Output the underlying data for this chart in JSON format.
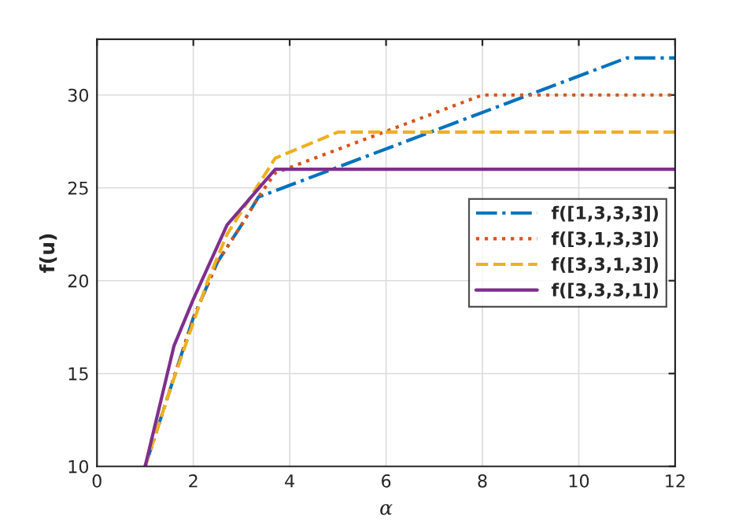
{
  "chart_data": {
    "type": "line",
    "xlabel": "α",
    "ylabel": "f(u)",
    "xlim": [
      0,
      12
    ],
    "ylim": [
      10,
      33
    ],
    "xticks": [
      0,
      2,
      4,
      6,
      8,
      10,
      12
    ],
    "yticks": [
      10,
      15,
      20,
      25,
      30
    ],
    "grid": true,
    "legend": "right",
    "series": [
      {
        "name": "f([1,3,3,3])",
        "color": "#0072bd",
        "line_style": "dashdot",
        "x": [
          1,
          1.5,
          2,
          2.5,
          3,
          3.35,
          11,
          12
        ],
        "values": [
          10,
          14,
          18,
          21,
          23,
          24.5,
          32,
          32
        ]
      },
      {
        "name": "f([3,1,3,3])",
        "color": "#d95319",
        "line_style": "dotted",
        "x": [
          1,
          1.5,
          2,
          2.5,
          3,
          3.35,
          3.7,
          8,
          12
        ],
        "values": [
          10,
          14,
          18,
          21,
          23,
          24.5,
          25.8,
          30,
          30
        ]
      },
      {
        "name": "f([3,3,1,3])",
        "color": "#edb120",
        "line_style": "dashed",
        "x": [
          1,
          1.5,
          2.3,
          2.7,
          3.7,
          5,
          12
        ],
        "values": [
          10,
          14,
          20,
          22.5,
          26.6,
          28,
          28
        ]
      },
      {
        "name": "f([3,3,3,1])",
        "color": "#7e2f8e",
        "line_style": "solid",
        "x": [
          1,
          1.6,
          2,
          2.7,
          3.3,
          3.7,
          12
        ],
        "values": [
          10,
          16.5,
          19,
          23,
          24.8,
          26,
          26
        ]
      }
    ]
  }
}
